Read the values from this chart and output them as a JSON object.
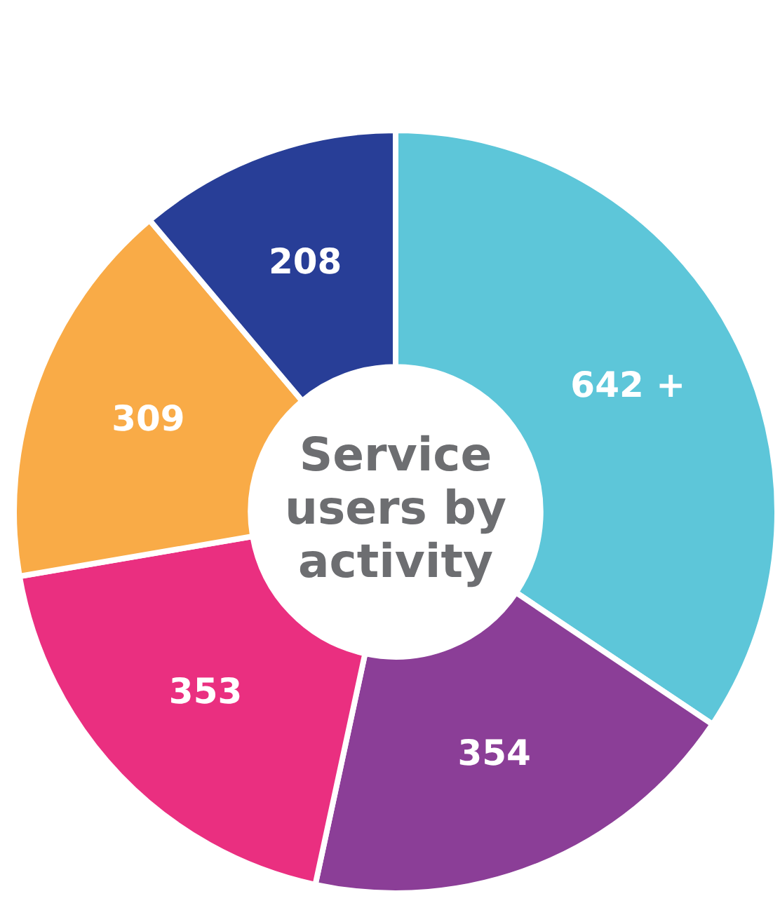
{
  "chart_data": {
    "type": "donut",
    "title": "Service users by activity",
    "categories": [
      null,
      null,
      null,
      null,
      null
    ],
    "values": [
      642,
      354,
      353,
      309,
      208
    ],
    "value_labels": [
      "642 +",
      "354",
      "353",
      "309",
      "208"
    ],
    "colors": [
      "#5dc6d9",
      "#8b3e97",
      "#ea2f80",
      "#f9ab47",
      "#283e97"
    ],
    "legend": false
  }
}
